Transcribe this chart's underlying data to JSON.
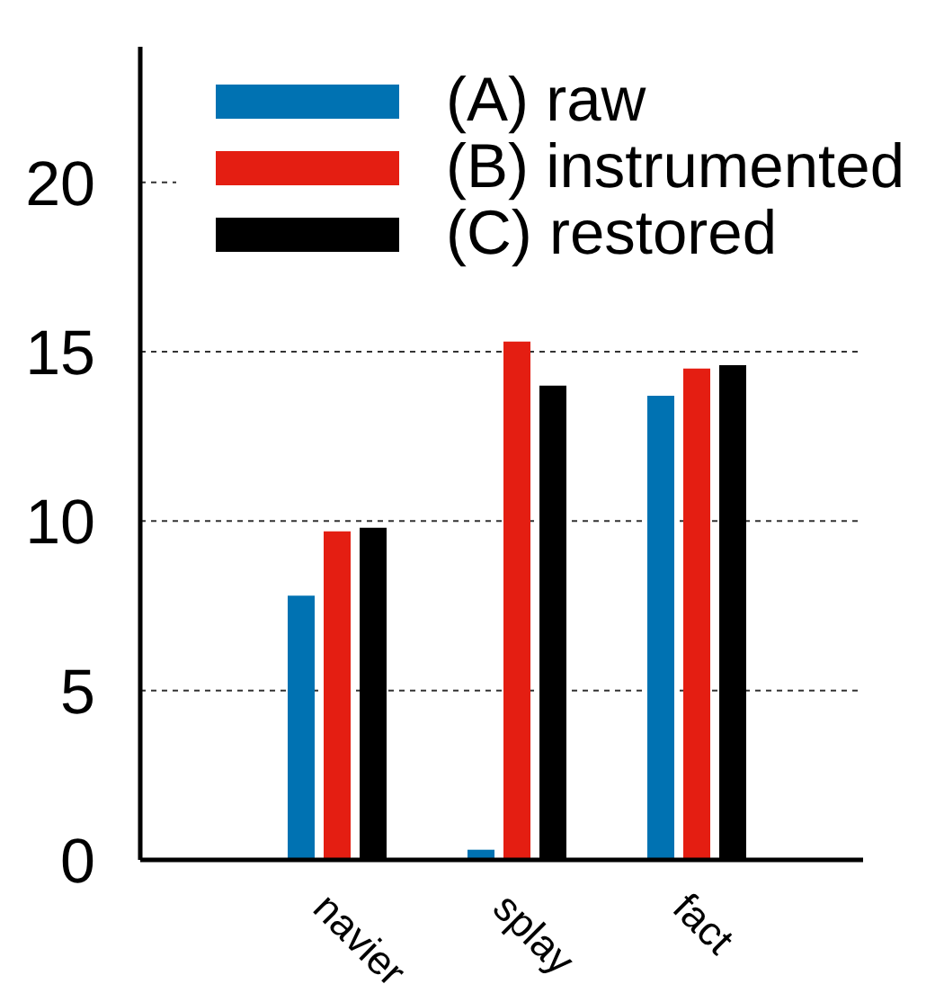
{
  "chart_data": {
    "type": "bar",
    "categories": [
      "navier",
      "splay",
      "fact"
    ],
    "series": [
      {
        "name": "(A) raw",
        "color": "#0072b2",
        "values": [
          7.8,
          0.3,
          13.7
        ]
      },
      {
        "name": "(B) instrumented",
        "color": "#e41e12",
        "values": [
          9.7,
          15.3,
          14.5
        ]
      },
      {
        "name": "(C) restored",
        "color": "#000000",
        "values": [
          9.8,
          14.0,
          14.6
        ]
      }
    ],
    "ylim": [
      0,
      24
    ],
    "yticks": [
      0,
      5,
      10,
      15,
      20
    ],
    "grid": "y",
    "legend": "top"
  }
}
